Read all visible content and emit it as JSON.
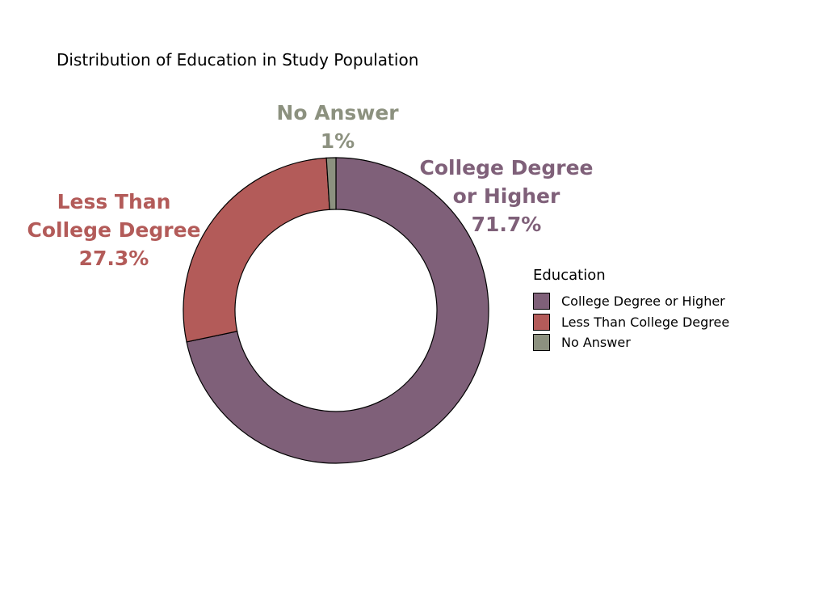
{
  "chart_data": {
    "type": "pie",
    "title": "Distribution of Education in Study Population",
    "slices": [
      {
        "label": "College Degree or Higher",
        "value": 71.7,
        "value_label": "71.7%",
        "label_lines": [
          "College Degree",
          "or Higher",
          "71.7%"
        ],
        "color": "#7f6079"
      },
      {
        "label": "Less Than College Degree",
        "value": 27.3,
        "value_label": "27.3%",
        "label_lines": [
          "Less Than",
          "College Degree",
          "27.3%"
        ],
        "color": "#b35b59"
      },
      {
        "label": "No Answer",
        "value": 1,
        "value_label": "1%",
        "label_lines": [
          "No Answer",
          "1%"
        ],
        "color": "#8c917f"
      }
    ],
    "legend": {
      "title": "Education",
      "placement": "right",
      "items": [
        "College Degree or Higher",
        "Less Than College Degree",
        "No Answer"
      ]
    },
    "donut": true,
    "start": "top",
    "direction": "clockwise"
  }
}
